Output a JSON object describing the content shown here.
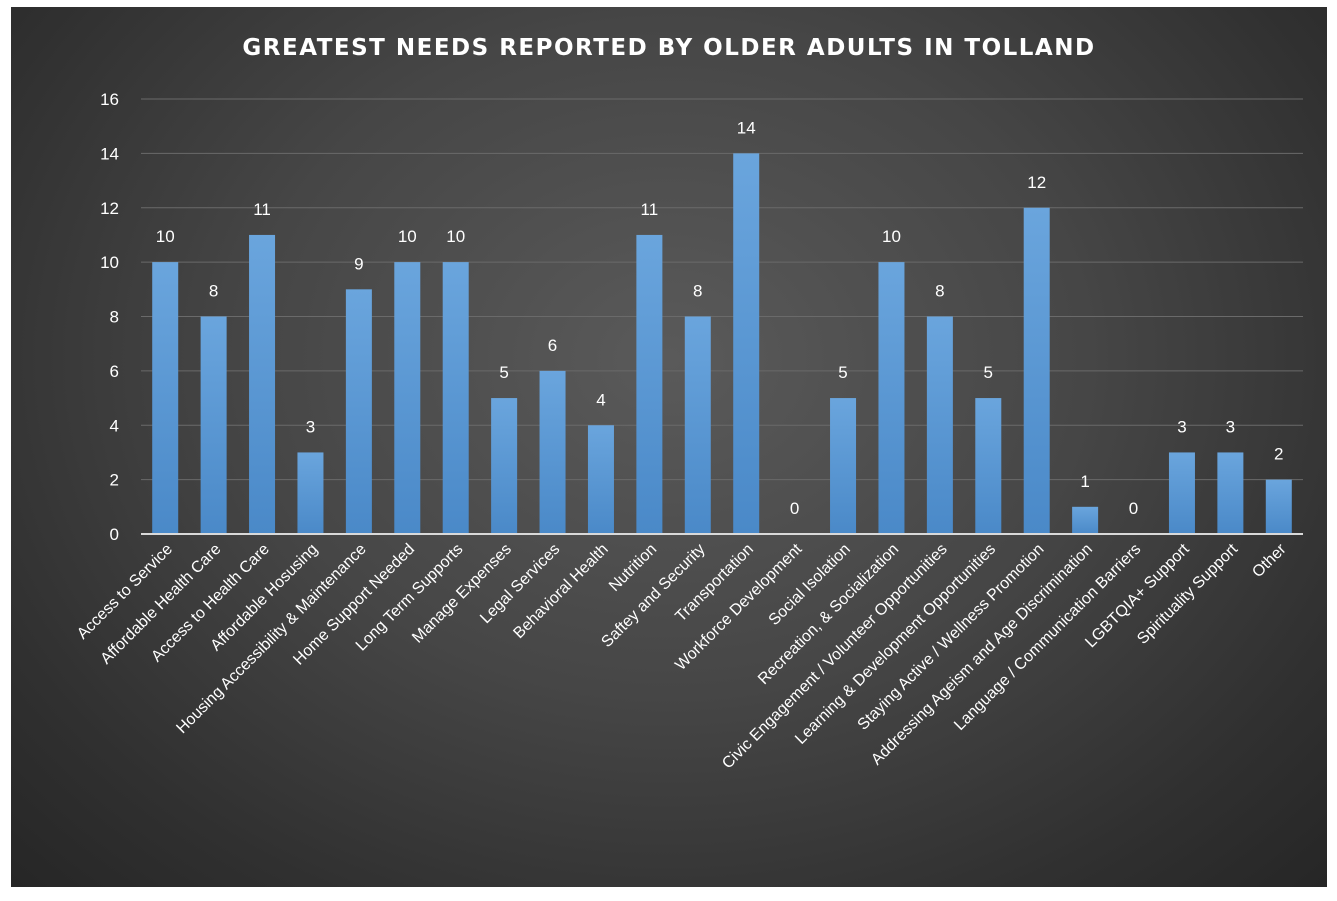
{
  "chart_data": {
    "type": "bar",
    "title": "GREATEST NEEDS REPORTED BY OLDER ADULTS IN TOLLAND",
    "xlabel": "",
    "ylabel": "",
    "ylim": [
      0,
      16
    ],
    "ytick_step": 2,
    "yticks": [
      "0",
      "2",
      "4",
      "6",
      "8",
      "10",
      "12",
      "14",
      "16"
    ],
    "grid": true,
    "legend": "none",
    "bar_color": "#5b9bd5",
    "background_color": "#404040",
    "categories": [
      "Access to Service",
      "Affordable Health Care",
      "Access to Health Care",
      "Affordable Hosusing",
      "Housing Accessibility & Maintenance",
      "Home Support Needed",
      "Long Term Supports",
      "Manage Expenses",
      "Legal Services",
      "Behavioral Health",
      "Nutrition",
      "Saftey and Security",
      "Transportation",
      "Workforce Development",
      "Social Isolation",
      "Recreation, & Socialization",
      "Civic Engagement / Volunteer Opportunities",
      "Learning & Development Opportunities",
      "Staying Active / Wellness Promotion",
      "Addressing Ageism and Age Discrimination",
      "Language / Communication Barriers",
      "LGBTQIA+ Support",
      "Spirituality Support",
      "Other"
    ],
    "values": [
      10,
      8,
      11,
      3,
      9,
      10,
      10,
      5,
      6,
      4,
      11,
      8,
      14,
      0,
      5,
      10,
      8,
      5,
      12,
      1,
      0,
      3,
      3,
      2
    ]
  }
}
